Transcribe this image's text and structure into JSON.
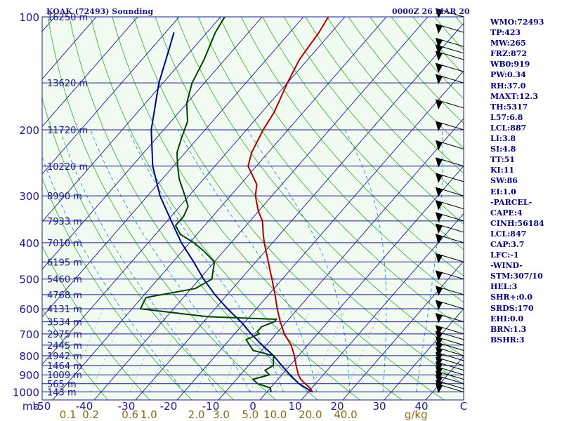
{
  "chart_data": {
    "type": "line",
    "title": "KOAK (72493) Sounding",
    "valid_time": "0000Z 26 MAR 20",
    "pressure_axis_label": "mb",
    "pressure_ticks": [
      "100",
      "200",
      "300",
      "400",
      "500",
      "600",
      "700",
      "800",
      "900",
      "1000"
    ],
    "height_levels": [
      {
        "p": 100,
        "label": "16250 m"
      },
      {
        "p": 150,
        "label": "13620 m"
      },
      {
        "p": 200,
        "label": "11720 m"
      },
      {
        "p": 250,
        "label": "10220 m"
      },
      {
        "p": 300,
        "label": "8990 m"
      },
      {
        "p": 350,
        "label": "7933 m"
      },
      {
        "p": 400,
        "label": "7010 m"
      },
      {
        "p": 450,
        "label": "6195 m"
      },
      {
        "p": 500,
        "label": "5460 m"
      },
      {
        "p": 550,
        "label": "4768 m"
      },
      {
        "p": 600,
        "label": "4131 m"
      },
      {
        "p": 650,
        "label": "3534 m"
      },
      {
        "p": 700,
        "label": "2975 m"
      },
      {
        "p": 750,
        "label": "2445 m"
      },
      {
        "p": 800,
        "label": "1942 m"
      },
      {
        "p": 850,
        "label": "1464 m"
      },
      {
        "p": 900,
        "label": "1009 m"
      },
      {
        "p": 950,
        "label": "565 m"
      },
      {
        "p": 1000,
        "label": "143 m"
      }
    ],
    "temperature_ticks": [
      "-50",
      "-40",
      "-30",
      "-20",
      "-10",
      "0",
      "10",
      "20",
      "30",
      "40",
      "C"
    ],
    "mixing_ratio_ticks": [
      {
        "t": -48,
        "label": "0.1"
      },
      {
        "t": -42.5,
        "label": "0.2"
      },
      {
        "t": -33,
        "label": "0.6"
      },
      {
        "t": -28.5,
        "label": "1.0"
      },
      {
        "t": -17,
        "label": "2.0"
      },
      {
        "t": -11,
        "label": "3.0"
      },
      {
        "t": -4,
        "label": "5.0"
      },
      {
        "t": 2,
        "label": "10.0"
      },
      {
        "t": 10.5,
        "label": "20.0"
      },
      {
        "t": 19,
        "label": "40.0"
      },
      {
        "t": 36,
        "label": "g/kg"
      }
    ],
    "temperature_profile": [
      [
        1000,
        11
      ],
      [
        975,
        9.5
      ],
      [
        950,
        7.5
      ],
      [
        925,
        5.5
      ],
      [
        900,
        4
      ],
      [
        850,
        1.5
      ],
      [
        800,
        -1
      ],
      [
        750,
        -4
      ],
      [
        700,
        -8
      ],
      [
        650,
        -11.5
      ],
      [
        600,
        -15
      ],
      [
        550,
        -18.5
      ],
      [
        500,
        -22.5
      ],
      [
        450,
        -27
      ],
      [
        400,
        -32
      ],
      [
        380,
        -34
      ],
      [
        350,
        -37
      ],
      [
        330,
        -40
      ],
      [
        300,
        -44
      ],
      [
        280,
        -46
      ],
      [
        250,
        -52
      ],
      [
        230,
        -54
      ],
      [
        200,
        -56
      ],
      [
        180,
        -57
      ],
      [
        150,
        -60
      ],
      [
        130,
        -62
      ],
      [
        110,
        -63
      ],
      [
        100,
        -64
      ]
    ],
    "dewpoint_profile": [
      [
        1000,
        1
      ],
      [
        975,
        0
      ],
      [
        950,
        -4
      ],
      [
        925,
        -6
      ],
      [
        900,
        -3
      ],
      [
        875,
        -5
      ],
      [
        850,
        -4
      ],
      [
        825,
        -5
      ],
      [
        800,
        -6
      ],
      [
        775,
        -12
      ],
      [
        750,
        -14
      ],
      [
        725,
        -16
      ],
      [
        700,
        -14
      ],
      [
        690,
        -15
      ],
      [
        670,
        -15
      ],
      [
        650,
        -13
      ],
      [
        640,
        -13
      ],
      [
        630,
        -30
      ],
      [
        600,
        -48
      ],
      [
        560,
        -49
      ],
      [
        530,
        -39
      ],
      [
        500,
        -37
      ],
      [
        450,
        -40
      ],
      [
        420,
        -45
      ],
      [
        400,
        -49
      ],
      [
        380,
        -54
      ],
      [
        360,
        -57
      ],
      [
        340,
        -57
      ],
      [
        320,
        -58
      ],
      [
        300,
        -61
      ],
      [
        270,
        -66
      ],
      [
        250,
        -69
      ],
      [
        230,
        -72
      ],
      [
        210,
        -74
      ],
      [
        190,
        -76
      ],
      [
        170,
        -80
      ],
      [
        150,
        -83
      ],
      [
        130,
        -85
      ],
      [
        110,
        -88
      ],
      [
        100,
        -89
      ]
    ],
    "parcel_profile": [
      [
        1000,
        11
      ],
      [
        950,
        6
      ],
      [
        900,
        2
      ],
      [
        850,
        -2
      ],
      [
        800,
        -6
      ],
      [
        750,
        -11
      ],
      [
        700,
        -16
      ],
      [
        650,
        -21
      ],
      [
        600,
        -27
      ],
      [
        550,
        -33
      ],
      [
        500,
        -39
      ],
      [
        450,
        -45
      ],
      [
        400,
        -52
      ],
      [
        350,
        -59
      ],
      [
        300,
        -67
      ],
      [
        250,
        -75
      ],
      [
        200,
        -83
      ],
      [
        150,
        -91
      ],
      [
        120,
        -96
      ],
      [
        110,
        -98
      ]
    ],
    "wind_levels_mb": [
      1000,
      980,
      950,
      925,
      900,
      875,
      850,
      825,
      800,
      775,
      750,
      725,
      700,
      650,
      600,
      550,
      500,
      450,
      400,
      375,
      350,
      325,
      300,
      275,
      250,
      225,
      200,
      175,
      150,
      140,
      130,
      125,
      120,
      110,
      100
    ]
  },
  "indices": [
    "WMO:72493",
    "TP:423",
    "MW:265",
    "FRZ:872",
    "WB0:919",
    "PW:0.34",
    "RH:37.0",
    "MAXT:12.3",
    "TH:5317",
    "L57:6.8",
    "LCL:887",
    "LI:3.8",
    "SI:4.8",
    "TT:51",
    "KI:11",
    "SW:86",
    "EI:1.0",
    "-PARCEL-",
    "CAPE:4",
    "CINH:56184",
    "LCL:847",
    "CAP:3.7",
    "LFC:-1",
    "-WIND-",
    "STM:307/10",
    "HEL:3",
    "SHR+:0.0",
    "SRDS:170",
    "EHI:0.0",
    "BRN:1.3",
    "BSHR:3"
  ],
  "colors": {
    "background": "#f2fbf2",
    "isobar": "#1c1c8c",
    "isotherm": "#1c1c8c",
    "dry_adiabat": "#2eaa2e",
    "moist_adiabat": "#2e8fd8",
    "mixing_ratio": "#b0b0b0",
    "temperature": "#b40000",
    "dewpoint": "#004400",
    "parcel": "#00008c",
    "wind": "#000000",
    "text": "#1c1c8c",
    "mixing_label": "#8c6a1a"
  }
}
